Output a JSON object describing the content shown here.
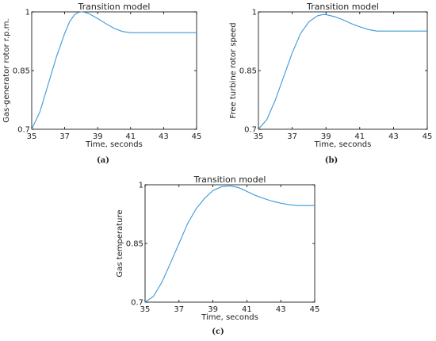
{
  "chart_data": [
    {
      "type": "line",
      "title": "Transition model",
      "xlabel": "Time, seconds",
      "ylabel": "Gas-generator rotor r.p.m.",
      "caption": "(a)",
      "xlim": [
        35,
        45
      ],
      "ylim": [
        0.7,
        1.0
      ],
      "xticks": [
        "35",
        "37",
        "39",
        "41",
        "43",
        "45"
      ],
      "yticks": [
        "0.7",
        "0.85",
        "1"
      ],
      "grid": false,
      "color": "#3a9ad9",
      "series": [
        {
          "x": [
            35,
            35.5,
            36,
            36.5,
            37,
            37.3,
            37.6,
            37.8,
            38,
            38.2,
            38.5,
            39,
            39.5,
            40,
            40.5,
            41,
            42,
            43,
            44,
            45
          ],
          "y": [
            0.7,
            0.745,
            0.815,
            0.885,
            0.945,
            0.975,
            0.993,
            0.998,
            1.0,
            0.999,
            0.995,
            0.983,
            0.97,
            0.958,
            0.95,
            0.947,
            0.947,
            0.947,
            0.947,
            0.947
          ]
        }
      ]
    },
    {
      "type": "line",
      "title": "Transition model",
      "xlabel": "Time, seconds",
      "ylabel": "Free turbine rotor speed",
      "caption": "(b)",
      "xlim": [
        35,
        45
      ],
      "ylim": [
        0.7,
        1.0
      ],
      "xticks": [
        "35",
        "37",
        "39",
        "41",
        "43",
        "45"
      ],
      "yticks": [
        "0.7",
        "0.85",
        "1"
      ],
      "grid": false,
      "color": "#3a9ad9",
      "series": [
        {
          "x": [
            35,
            35.5,
            36,
            36.5,
            37,
            37.5,
            38,
            38.5,
            38.8,
            39,
            39.5,
            40,
            40.5,
            41,
            41.5,
            42,
            43,
            44,
            45
          ],
          "y": [
            0.7,
            0.725,
            0.775,
            0.835,
            0.895,
            0.945,
            0.975,
            0.99,
            0.993,
            0.993,
            0.988,
            0.98,
            0.97,
            0.962,
            0.955,
            0.951,
            0.951,
            0.951,
            0.951
          ]
        }
      ]
    },
    {
      "type": "line",
      "title": "Transition model",
      "xlabel": "Time, seconds",
      "ylabel": "Gas temperature",
      "caption": "(c)",
      "xlim": [
        35,
        45
      ],
      "ylim": [
        0.7,
        1.0
      ],
      "xticks": [
        "35",
        "37",
        "39",
        "41",
        "43",
        "45"
      ],
      "yticks": [
        "0.7",
        "0.85",
        "1"
      ],
      "grid": false,
      "color": "#3a9ad9",
      "series": [
        {
          "x": [
            35,
            35.5,
            36,
            36.5,
            37,
            37.5,
            38,
            38.5,
            39,
            39.5,
            40,
            40.5,
            41,
            41.5,
            42,
            42.5,
            43,
            43.5,
            44,
            45
          ],
          "y": [
            0.7,
            0.715,
            0.752,
            0.8,
            0.85,
            0.9,
            0.938,
            0.965,
            0.985,
            0.995,
            0.997,
            0.993,
            0.983,
            0.973,
            0.965,
            0.958,
            0.953,
            0.949,
            0.947,
            0.947
          ]
        }
      ]
    }
  ]
}
